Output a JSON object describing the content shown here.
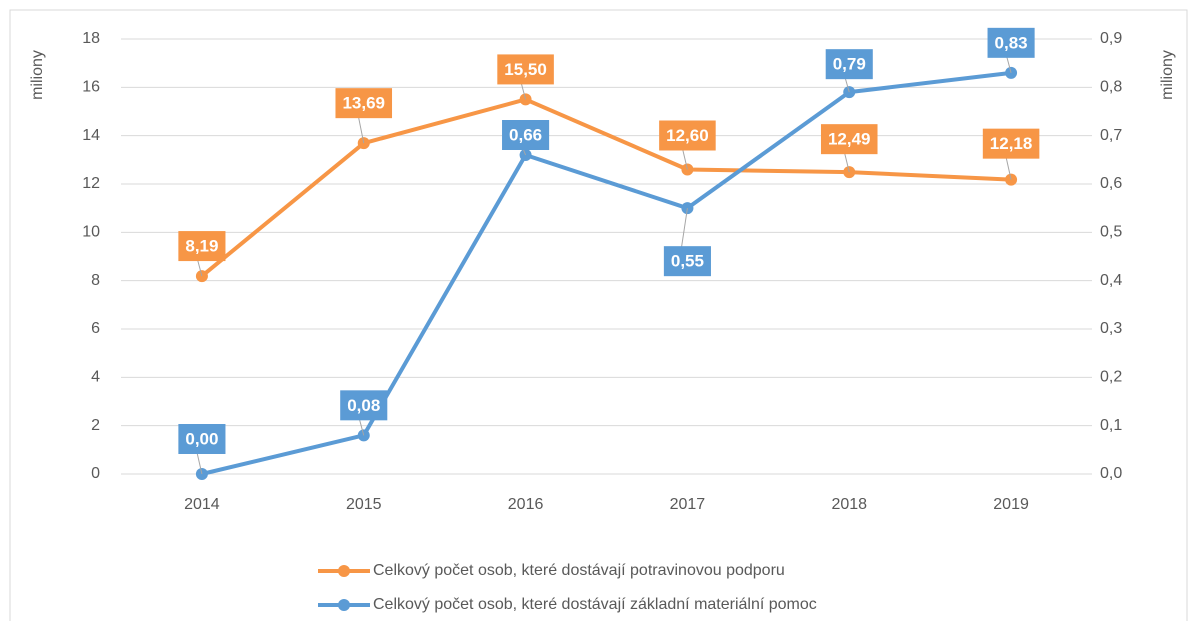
{
  "chart_data": {
    "type": "line",
    "y_label": "miliony",
    "y2_label": "miliony",
    "categories": [
      "2014",
      "2015",
      "2016",
      "2017",
      "2018",
      "2019"
    ],
    "series": [
      {
        "name": "Celkový počet osob, které dostávají potravinovou podporu",
        "color": "#f79646",
        "values": [
          8.19,
          13.69,
          15.5,
          12.6,
          12.49,
          12.18
        ],
        "value_labels": [
          "8,19",
          "13,69",
          "15,50",
          "12,60",
          "12,49",
          "12,18"
        ]
      },
      {
        "name": "Celkový počet osob, které dostávají základní materiální pomoc",
        "color": "#5b9bd5",
        "axis": "y2",
        "values": [
          0.0,
          0.08,
          0.66,
          0.55,
          0.79,
          0.83
        ],
        "value_labels": [
          "0,00",
          "0,08",
          "0,66",
          "0,55",
          "0,79",
          "0,83"
        ]
      }
    ],
    "ylim": [
      0,
      18
    ],
    "yticks": [
      0,
      2,
      4,
      6,
      8,
      10,
      12,
      14,
      16,
      18
    ],
    "y2lim": [
      0,
      0.9
    ],
    "y2ticks": [
      {
        "value": 0,
        "label": "0,0"
      },
      {
        "value": 0.1,
        "label": "0,1"
      },
      {
        "value": 0.2,
        "label": "0,2"
      },
      {
        "value": 0.3,
        "label": "0,3"
      },
      {
        "value": 0.4,
        "label": "0,4"
      },
      {
        "value": 0.5,
        "label": "0,5"
      },
      {
        "value": 0.6,
        "label": "0,6"
      },
      {
        "value": 0.7,
        "label": "0,7"
      },
      {
        "value": 0.8,
        "label": "0,8"
      },
      {
        "value": 0.9,
        "label": "0,9"
      }
    ],
    "grid": true,
    "legend": "bottom"
  }
}
